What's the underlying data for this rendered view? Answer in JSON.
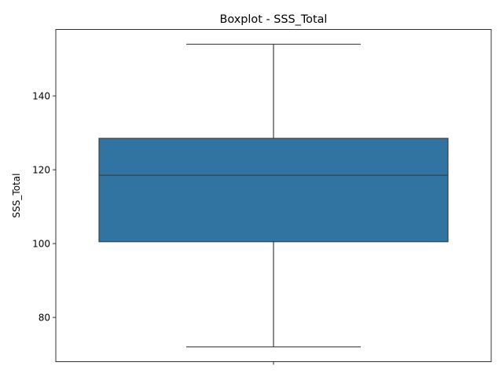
{
  "chart_data": {
    "type": "boxplot",
    "title": "Boxplot - SSS_Total",
    "xlabel": "",
    "ylabel": "SSS_Total",
    "ylim": [
      68,
      158
    ],
    "yticks": [
      80,
      100,
      120,
      140
    ],
    "grid": false,
    "box": {
      "whisker_low": 72,
      "q1": 100.5,
      "median": 118.5,
      "q3": 128.5,
      "whisker_high": 154
    },
    "colors": {
      "box_fill": "#3274a1",
      "line": "#3f3f3f"
    }
  }
}
